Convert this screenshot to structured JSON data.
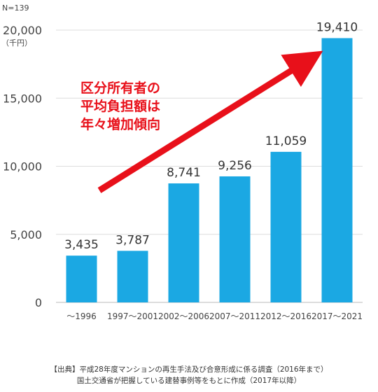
{
  "sample_label": "N=139",
  "unit_label": "（千円）",
  "chart_data": {
    "type": "bar",
    "categories": [
      "～1996",
      "1997～2001",
      "2002～2006",
      "2007～2011",
      "2012～2016",
      "2017～2021"
    ],
    "values": [
      3435,
      3787,
      8741,
      9256,
      11059,
      19410
    ],
    "value_labels": [
      "3,435",
      "3,787",
      "8,741",
      "9,256",
      "11,059",
      "19,410"
    ],
    "yticks": [
      0,
      5000,
      10000,
      15000,
      20000
    ],
    "ytick_labels": [
      "0",
      "5,000",
      "10,000",
      "15,000",
      "20,000"
    ],
    "ylim": [
      0,
      20000
    ],
    "grid": true,
    "legend": "none",
    "bar_color": "#1ba8e3",
    "annotation": {
      "lines": [
        "区分所有者の",
        "平均負担額は",
        "年々増加傾向"
      ],
      "color": "#e8101a"
    }
  },
  "source_lines": [
    "【出典】平成28年度マンションの再生手法及び合意形成に係る調査（2016年まで）",
    "国土交通省が把握している建替事例等をもとに作成（2017年以降）"
  ]
}
